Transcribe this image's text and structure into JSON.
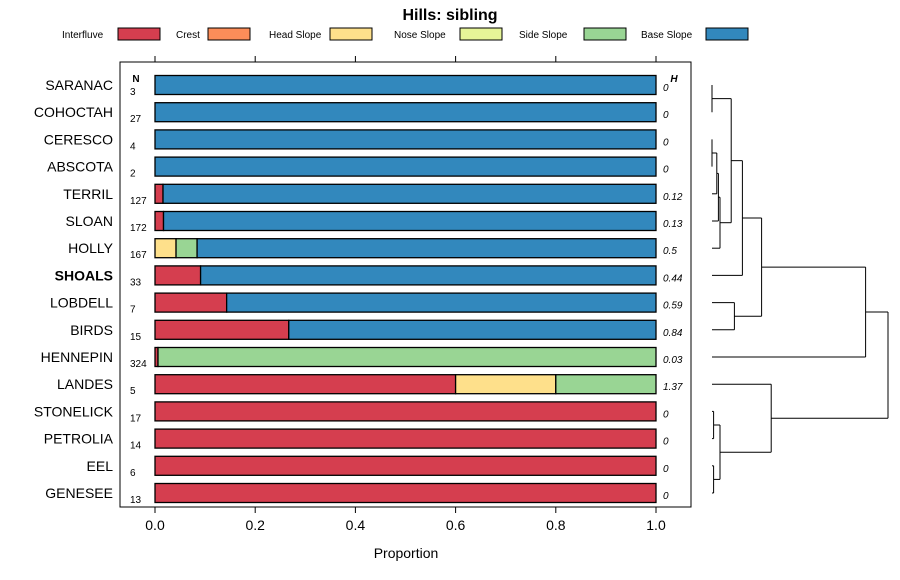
{
  "chart_data": {
    "type": "bar",
    "orientation": "horizontal",
    "stacked": true,
    "title": "Hills: sibling",
    "xlabel": "Proportion",
    "xlim": [
      0,
      1
    ],
    "xticks": [
      "0.0",
      "0.2",
      "0.4",
      "0.6",
      "0.8",
      "1.0"
    ],
    "n_header": "N",
    "h_header": "H",
    "legend": [
      {
        "name": "Interfluve",
        "color": "#d53e4f"
      },
      {
        "name": "Crest",
        "color": "#fc8d59"
      },
      {
        "name": "Head Slope",
        "color": "#fee08b"
      },
      {
        "name": "Nose Slope",
        "color": "#e6f598"
      },
      {
        "name": "Side Slope",
        "color": "#99d594"
      },
      {
        "name": "Base Slope",
        "color": "#3288bd"
      }
    ],
    "rows": [
      {
        "soil": "SARANAC",
        "n": "3",
        "h": "0",
        "values": [
          0,
          0,
          0,
          0,
          0,
          1
        ]
      },
      {
        "soil": "COHOCTAH",
        "n": "27",
        "h": "0",
        "values": [
          0,
          0,
          0,
          0,
          0,
          1
        ]
      },
      {
        "soil": "CERESCO",
        "n": "4",
        "h": "0",
        "values": [
          0,
          0,
          0,
          0,
          0,
          1
        ]
      },
      {
        "soil": "ABSCOTA",
        "n": "2",
        "h": "0",
        "values": [
          0,
          0,
          0,
          0,
          0,
          1
        ]
      },
      {
        "soil": "TERRIL",
        "n": "127",
        "h": "0.12",
        "values": [
          0.016,
          0,
          0,
          0,
          0,
          0.984
        ]
      },
      {
        "soil": "SLOAN",
        "n": "172",
        "h": "0.13",
        "values": [
          0.017,
          0,
          0,
          0,
          0,
          0.983
        ]
      },
      {
        "soil": "HOLLY",
        "n": "167",
        "h": "0.5",
        "values": [
          0,
          0,
          0.042,
          0,
          0.042,
          0.916
        ]
      },
      {
        "soil": "SHOALS",
        "n": "33",
        "h": "0.44",
        "values": [
          0.091,
          0,
          0,
          0,
          0,
          0.909
        ],
        "highlight": true
      },
      {
        "soil": "LOBDELL",
        "n": "7",
        "h": "0.59",
        "values": [
          0.143,
          0,
          0,
          0,
          0,
          0.857
        ]
      },
      {
        "soil": "BIRDS",
        "n": "15",
        "h": "0.84",
        "values": [
          0.267,
          0,
          0,
          0,
          0,
          0.733
        ]
      },
      {
        "soil": "HENNEPIN",
        "n": "324",
        "h": "0.03",
        "values": [
          0.006,
          0,
          0,
          0,
          0.994,
          0
        ]
      },
      {
        "soil": "LANDES",
        "n": "5",
        "h": "1.37",
        "values": [
          0.6,
          0,
          0.2,
          0,
          0.2,
          0
        ]
      },
      {
        "soil": "STONELICK",
        "n": "17",
        "h": "0",
        "values": [
          1,
          0,
          0,
          0,
          0,
          0
        ]
      },
      {
        "soil": "PETROLIA",
        "n": "14",
        "h": "0",
        "values": [
          1,
          0,
          0,
          0,
          0,
          0
        ]
      },
      {
        "soil": "EEL",
        "n": "6",
        "h": "0",
        "values": [
          1,
          0,
          0,
          0,
          0,
          0
        ]
      },
      {
        "soil": "GENESEE",
        "n": "13",
        "h": "0",
        "values": [
          1,
          0,
          0,
          0,
          0,
          0
        ]
      }
    ],
    "dendrogram": {
      "note": "hierarchical clustering of the soil rows shown at right",
      "nodes": [
        {
          "id": "n1",
          "children": [
            0,
            1
          ],
          "height": 0.0
        },
        {
          "id": "n2",
          "children": [
            2,
            3
          ],
          "height": 0.0
        },
        {
          "id": "n3",
          "children": [
            "n2",
            4
          ],
          "height": 0.15
        },
        {
          "id": "n4",
          "children": [
            "n3",
            5
          ],
          "height": 0.2
        },
        {
          "id": "n5",
          "children": [
            "n4",
            6
          ],
          "height": 0.25
        },
        {
          "id": "n6",
          "children": [
            "n1",
            "n5"
          ],
          "height": 0.6
        },
        {
          "id": "n7",
          "children": [
            "n6",
            7
          ],
          "height": 0.95
        },
        {
          "id": "n8",
          "children": [
            8,
            9
          ],
          "height": 0.7
        },
        {
          "id": "n9",
          "children": [
            "n7",
            "n8"
          ],
          "height": 1.55
        },
        {
          "id": "n10",
          "children": [
            "n9",
            10
          ],
          "height": 4.8
        },
        {
          "id": "n11",
          "children": [
            12,
            13
          ],
          "height": 0.05
        },
        {
          "id": "n12",
          "children": [
            14,
            15
          ],
          "height": 0.05
        },
        {
          "id": "n13",
          "children": [
            "n11",
            "n12"
          ],
          "height": 0.25
        },
        {
          "id": "n14",
          "children": [
            11,
            "n13"
          ],
          "height": 1.85
        },
        {
          "id": "n15",
          "children": [
            "n10",
            "n14"
          ],
          "height": 5.5
        }
      ]
    }
  }
}
